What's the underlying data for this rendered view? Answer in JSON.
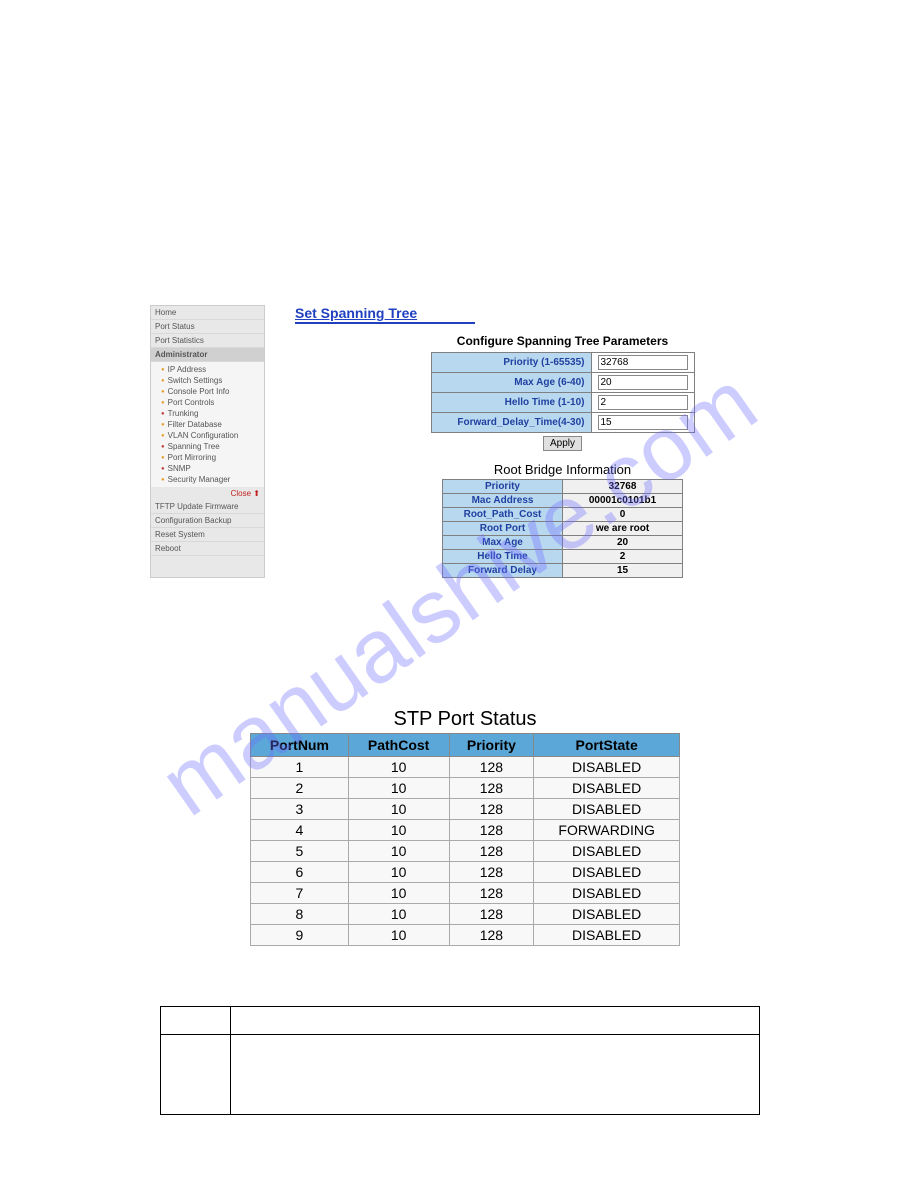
{
  "watermark_text": "manualshive.com",
  "sidebar": {
    "items_top": [
      "Home",
      "Port Status",
      "Port Statistics"
    ],
    "admin_header": "Administrator",
    "admin_items": [
      {
        "label": "IP Address",
        "color": "o"
      },
      {
        "label": "Switch Settings",
        "color": "o"
      },
      {
        "label": "Console Port Info",
        "color": "o"
      },
      {
        "label": "Port Controls",
        "color": "o"
      },
      {
        "label": "Trunking",
        "color": "r"
      },
      {
        "label": "Filter Database",
        "color": "o"
      },
      {
        "label": "VLAN Configuration",
        "color": "o"
      },
      {
        "label": "Spanning Tree",
        "color": "r"
      },
      {
        "label": "Port Mirroring",
        "color": "o"
      },
      {
        "label": "SNMP",
        "color": "r"
      },
      {
        "label": "Security Manager",
        "color": "o"
      }
    ],
    "close_label": "Close ⬆",
    "items_bottom": [
      "TFTP Update Firmware",
      "Configuration Backup",
      "Reset System",
      "Reboot"
    ]
  },
  "main": {
    "page_title": "Set Spanning Tree",
    "config_heading": "Configure Spanning Tree Parameters",
    "config_rows": [
      {
        "label": "Priority (1-65535)",
        "value": "32768"
      },
      {
        "label": "Max Age (6-40)",
        "value": "20"
      },
      {
        "label": "Hello Time (1-10)",
        "value": "2"
      },
      {
        "label": "Forward_Delay_Time(4-30)",
        "value": "15"
      }
    ],
    "apply_label": "Apply",
    "info_heading": "Root Bridge Information",
    "info_rows": [
      {
        "label": "Priority",
        "value": "32768"
      },
      {
        "label": "Mac Address",
        "value": "00001c0101b1"
      },
      {
        "label": "Root_Path_Cost",
        "value": "0"
      },
      {
        "label": "Root Port",
        "value": "we are root"
      },
      {
        "label": "Max Age",
        "value": "20"
      },
      {
        "label": "Hello Time",
        "value": "2"
      },
      {
        "label": "Forward Delay",
        "value": "15"
      }
    ]
  },
  "stp": {
    "title": "STP Port Status",
    "columns": [
      "PortNum",
      "PathCost",
      "Priority",
      "PortState"
    ],
    "rows": [
      [
        "1",
        "10",
        "128",
        "DISABLED"
      ],
      [
        "2",
        "10",
        "128",
        "DISABLED"
      ],
      [
        "3",
        "10",
        "128",
        "DISABLED"
      ],
      [
        "4",
        "10",
        "128",
        "FORWARDING"
      ],
      [
        "5",
        "10",
        "128",
        "DISABLED"
      ],
      [
        "6",
        "10",
        "128",
        "DISABLED"
      ],
      [
        "7",
        "10",
        "128",
        "DISABLED"
      ],
      [
        "8",
        "10",
        "128",
        "DISABLED"
      ],
      [
        "9",
        "10",
        "128",
        "DISABLED"
      ]
    ]
  },
  "colors": {
    "header_bg": "#5ba8d8",
    "label_bg": "#b8d8f0",
    "link_color": "#2040c0"
  }
}
